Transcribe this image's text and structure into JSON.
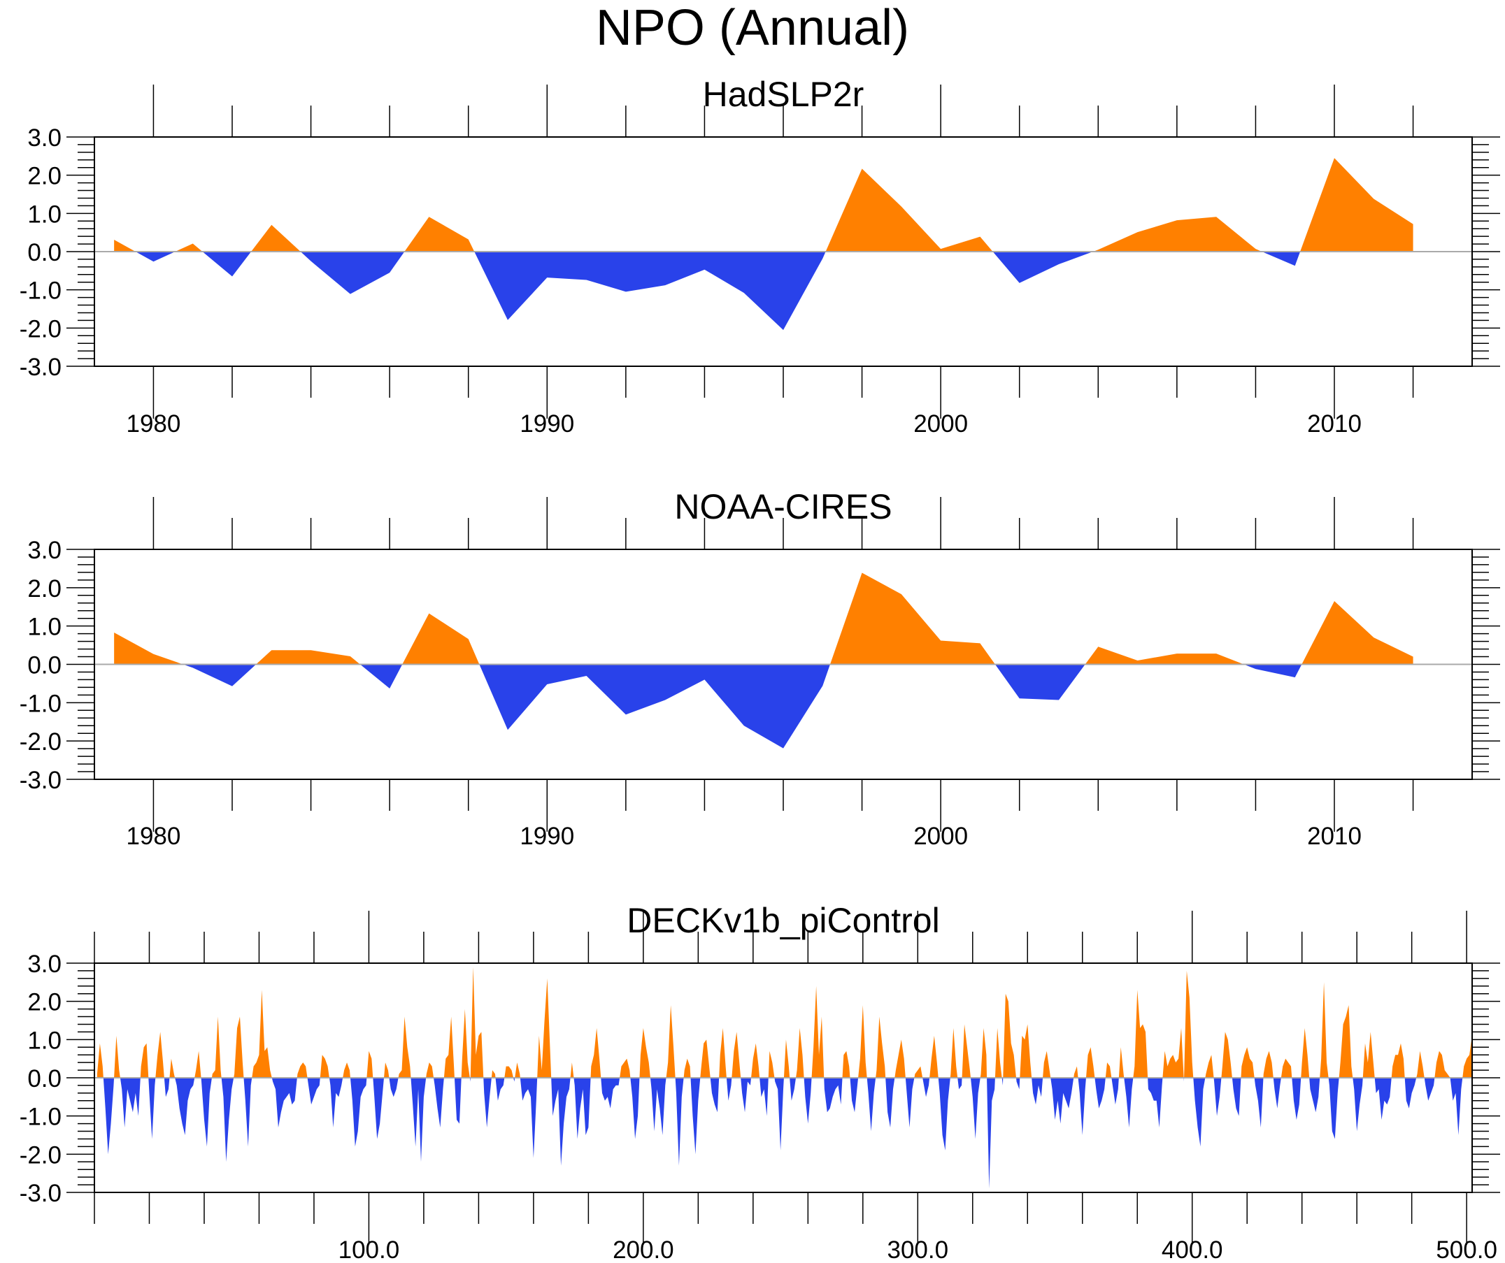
{
  "figure_title": "NPO (Annual)",
  "colors": {
    "positive": "#FF8000",
    "negative": "#2942EA",
    "zero_line": "#AAAAAA",
    "axis": "#000000"
  },
  "chart_data": [
    {
      "type": "area",
      "title": "HadSLP2r",
      "xlabel": "",
      "ylabel": "",
      "xlim": [
        1978.5,
        2013.5
      ],
      "ylim": [
        -3.0,
        3.0
      ],
      "x_ticks": [
        1980,
        1990,
        2000,
        2010
      ],
      "x_tick_labels": [
        "1980",
        "1990",
        "2000",
        "2010"
      ],
      "y_ticks": [
        3.0,
        2.0,
        1.0,
        0.0,
        -1.0,
        -2.0,
        -3.0
      ],
      "y_tick_labels": [
        "3.0",
        "2.0",
        "1.0",
        "0.0",
        "-1.0",
        "-2.0",
        "-3.0"
      ],
      "fill_above_zero": "orange",
      "fill_below_zero": "blue",
      "x": [
        1979,
        1980,
        1981,
        1982,
        1983,
        1984,
        1985,
        1986,
        1987,
        1988,
        1989,
        1990,
        1991,
        1992,
        1993,
        1994,
        1995,
        1996,
        1997,
        1998,
        1999,
        2000,
        2001,
        2002,
        2003,
        2004,
        2005,
        2006,
        2007,
        2008,
        2009,
        2010,
        2011,
        2012
      ],
      "values": [
        0.31,
        -0.26,
        0.21,
        -0.65,
        0.7,
        -0.25,
        -1.11,
        -0.55,
        0.91,
        0.32,
        -1.79,
        -0.68,
        -0.74,
        -1.05,
        -0.88,
        -0.47,
        -1.08,
        -2.05,
        -0.18,
        2.17,
        1.18,
        0.07,
        0.39,
        -0.82,
        -0.33,
        0.05,
        0.51,
        0.82,
        0.91,
        0.07,
        -0.37,
        2.45,
        1.38,
        0.72
      ]
    },
    {
      "type": "area",
      "title": "NOAA-CIRES",
      "xlabel": "",
      "ylabel": "",
      "xlim": [
        1978.5,
        2013.5
      ],
      "ylim": [
        -3.0,
        3.0
      ],
      "x_ticks": [
        1980,
        1990,
        2000,
        2010
      ],
      "x_tick_labels": [
        "1980",
        "1990",
        "2000",
        "2010"
      ],
      "y_ticks": [
        3.0,
        2.0,
        1.0,
        0.0,
        -1.0,
        -2.0,
        -3.0
      ],
      "y_tick_labels": [
        "3.0",
        "2.0",
        "1.0",
        "0.0",
        "-1.0",
        "-2.0",
        "-3.0"
      ],
      "fill_above_zero": "orange",
      "fill_below_zero": "blue",
      "x": [
        1979,
        1980,
        1981,
        1982,
        1983,
        1984,
        1985,
        1986,
        1987,
        1988,
        1989,
        1990,
        1991,
        1992,
        1993,
        1994,
        1995,
        1996,
        1997,
        1998,
        1999,
        2000,
        2001,
        2002,
        2003,
        2004,
        2005,
        2006,
        2007,
        2008,
        2009,
        2010,
        2011,
        2012
      ],
      "values": [
        0.83,
        0.27,
        -0.09,
        -0.57,
        0.37,
        0.37,
        0.21,
        -0.63,
        1.33,
        0.66,
        -1.71,
        -0.52,
        -0.3,
        -1.31,
        -0.93,
        -0.4,
        -1.6,
        -2.19,
        -0.56,
        2.39,
        1.83,
        0.62,
        0.55,
        -0.89,
        -0.93,
        0.46,
        0.1,
        0.28,
        0.28,
        -0.12,
        -0.34,
        1.65,
        0.7,
        0.2
      ]
    },
    {
      "type": "area",
      "title": "DECKv1b_piControl",
      "xlabel": "",
      "ylabel": "",
      "xlim": [
        0,
        502
      ],
      "ylim": [
        -3.0,
        3.0
      ],
      "x_ticks": [
        100,
        200,
        300,
        400,
        500
      ],
      "x_tick_labels": [
        "100.0",
        "200.0",
        "300.0",
        "400.0",
        "500.0"
      ],
      "y_ticks": [
        3.0,
        2.0,
        1.0,
        0.0,
        -1.0,
        -2.0,
        -3.0
      ],
      "y_tick_labels": [
        "3.0",
        "2.0",
        "1.0",
        "0.0",
        "-1.0",
        "-2.0",
        "-3.0"
      ],
      "fill_above_zero": "orange",
      "fill_below_zero": "blue",
      "x_start": 1,
      "values_note": "approximate, read from dense plot",
      "values": [
        0.1,
        0.9,
        0.3,
        -0.8,
        -2.0,
        -1.2,
        -0.2,
        1.1,
        0.2,
        -0.3,
        -1.3,
        -0.3,
        -0.6,
        -0.9,
        -0.4,
        -1.0,
        0.3,
        0.8,
        0.9,
        -0.4,
        -1.6,
        -0.2,
        0.6,
        1.2,
        0.4,
        -0.5,
        -0.3,
        0.5,
        0.1,
        -0.2,
        -0.8,
        -1.2,
        -1.5,
        -0.6,
        -0.3,
        -0.2,
        0.2,
        0.7,
        -0.1,
        -1.1,
        -1.8,
        -0.4,
        0.1,
        0.2,
        1.6,
        0.2,
        -0.5,
        -2.2,
        -1.1,
        -0.3,
        0.1,
        1.3,
        1.6,
        0.4,
        -0.6,
        -1.8,
        -0.2,
        0.3,
        0.4,
        0.6,
        2.3,
        0.7,
        0.8,
        0.2,
        -0.1,
        -0.3,
        -1.3,
        -0.9,
        -0.6,
        -0.5,
        -0.4,
        -0.7,
        -0.6,
        0.1,
        0.3,
        0.4,
        0.3,
        -0.2,
        -0.7,
        -0.5,
        -0.3,
        -0.2,
        0.6,
        0.5,
        0.3,
        -0.2,
        -1.3,
        -0.4,
        -0.5,
        -0.2,
        0.2,
        0.4,
        0.2,
        -0.6,
        -1.8,
        -1.4,
        -0.5,
        -0.3,
        -0.2,
        0.7,
        0.5,
        -0.5,
        -1.6,
        -1.2,
        -0.4,
        0.4,
        0.2,
        -0.3,
        -0.5,
        -0.3,
        0.1,
        0.2,
        1.6,
        0.8,
        0.3,
        -0.7,
        -1.8,
        -0.3,
        -2.2,
        -0.5,
        0.1,
        0.4,
        0.3,
        -0.2,
        -0.8,
        -1.3,
        -0.3,
        0.5,
        0.6,
        1.6,
        0.3,
        -1.1,
        -1.2,
        0.5,
        1.8,
        0.4,
        -0.1,
        2.9,
        0.6,
        1.1,
        1.2,
        -0.4,
        -1.3,
        -0.5,
        0.2,
        0.1,
        -0.6,
        -0.3,
        -0.2,
        0.3,
        0.3,
        0.2,
        -0.1,
        0.4,
        0.1,
        -0.6,
        -0.4,
        -0.3,
        -0.5,
        -2.1,
        -0.6,
        1.1,
        0.2,
        1.5,
        2.6,
        0.8,
        -1.0,
        -0.6,
        -0.3,
        -2.3,
        -1.2,
        -0.5,
        -0.3,
        0.4,
        -0.2,
        -1.6,
        -0.8,
        -0.3,
        -1.5,
        -1.3,
        0.3,
        0.6,
        1.3,
        0.5,
        -0.4,
        -0.6,
        -0.5,
        -0.8,
        -0.3,
        -0.2,
        -0.2,
        0.3,
        0.4,
        0.5,
        0.2,
        -0.5,
        -1.6,
        -1.0,
        0.6,
        1.3,
        0.8,
        0.4,
        -0.3,
        -1.4,
        -0.3,
        -0.8,
        -1.5,
        -0.2,
        0.4,
        1.9,
        0.8,
        -0.4,
        -2.3,
        -0.5,
        0.2,
        0.5,
        0.3,
        -1.0,
        -2.0,
        -0.6,
        0.2,
        0.9,
        1.0,
        0.3,
        -0.4,
        -0.7,
        -0.9,
        0.6,
        1.3,
        0.3,
        -0.6,
        -0.2,
        0.7,
        1.2,
        0.4,
        -0.4,
        -0.9,
        -0.1,
        -0.2,
        0.5,
        0.9,
        0.3,
        -0.5,
        -0.3,
        -1.0,
        0.7,
        0.4,
        -0.1,
        -0.3,
        -1.9,
        -0.3,
        1.0,
        0.3,
        -0.6,
        -0.3,
        0.2,
        1.3,
        0.6,
        -0.5,
        -1.2,
        -0.4,
        0.8,
        2.4,
        0.6,
        1.6,
        -0.3,
        -0.9,
        -0.8,
        -0.5,
        -0.3,
        -0.2,
        -0.7,
        0.6,
        0.7,
        0.3,
        -0.6,
        -0.9,
        -0.2,
        0.5,
        1.9,
        0.4,
        -0.4,
        -1.4,
        -0.4,
        0.2,
        1.6,
        0.9,
        0.3,
        -0.9,
        -1.3,
        -0.3,
        0.2,
        0.6,
        1.0,
        0.5,
        -0.4,
        -1.3,
        -0.3,
        0.1,
        0.2,
        0.3,
        -0.1,
        -0.5,
        -0.2,
        0.5,
        1.1,
        0.4,
        -0.4,
        -1.5,
        -1.9,
        -0.6,
        0.1,
        1.3,
        0.3,
        -0.3,
        -0.2,
        1.4,
        0.8,
        0.2,
        -0.5,
        -1.6,
        -0.4,
        0.1,
        1.3,
        0.6,
        -2.9,
        -0.6,
        -0.3,
        1.3,
        0.4,
        -0.2,
        2.2,
        2.0,
        0.9,
        0.6,
        -0.1,
        -0.3,
        1.1,
        1.0,
        1.4,
        0.4,
        -0.4,
        -0.7,
        -0.2,
        -0.5,
        0.4,
        0.7,
        0.2,
        -0.3,
        -1.1,
        -0.6,
        -1.2,
        -0.4,
        -0.6,
        -0.8,
        -0.4,
        0.1,
        0.3,
        -0.4,
        -1.5,
        -0.3,
        0.6,
        0.8,
        0.3,
        -0.3,
        -0.8,
        -0.6,
        -0.3,
        0.4,
        0.3,
        -0.2,
        -0.7,
        -0.3,
        0.8,
        0.1,
        -0.5,
        -1.3,
        -0.3,
        0.3,
        2.3,
        1.3,
        1.4,
        1.2,
        -0.3,
        -0.4,
        -0.6,
        -0.6,
        -1.3,
        -0.2,
        0.7,
        0.3,
        0.5,
        0.6,
        0.4,
        0.5,
        1.3,
        -0.1,
        2.8,
        2.1,
        0.4,
        -0.6,
        -1.3,
        -1.8,
        -0.3,
        0.1,
        0.4,
        0.6,
        -0.1,
        -1.0,
        -0.5,
        0.3,
        1.2,
        1.0,
        0.4,
        -0.3,
        -0.8,
        -1.0,
        0.3,
        0.6,
        0.8,
        0.5,
        0.4,
        -0.2,
        -0.6,
        -1.3,
        0.1,
        0.5,
        0.7,
        0.4,
        -0.3,
        -0.8,
        -0.2,
        0.3,
        0.5,
        0.4,
        0.3,
        -0.6,
        -1.1,
        -0.7,
        0.4,
        1.3,
        0.6,
        -0.3,
        -0.6,
        -0.9,
        -0.5,
        0.5,
        2.5,
        0.4,
        -0.2,
        -1.4,
        -1.6,
        -0.4,
        0.4,
        1.4,
        1.6,
        1.9,
        0.3,
        -0.3,
        -1.4,
        -0.7,
        -0.2,
        0.9,
        0.4,
        1.2,
        0.4,
        -0.4,
        -0.3,
        -1.1,
        -0.6,
        -0.7,
        -0.5,
        0.3,
        0.6,
        0.6,
        0.9,
        0.5,
        -0.6,
        -0.8,
        -0.4,
        -0.2,
        0.1,
        0.7,
        0.3,
        -0.2,
        -0.6,
        -0.4,
        -0.2,
        0.4,
        0.7,
        0.6,
        0.2,
        0.1,
        0.0,
        -0.6,
        -0.4,
        -1.5,
        -0.3,
        0.3,
        0.5,
        0.6,
        1.1,
        0.7,
        -1.2,
        0.9,
        0.3,
        -0.3
      ]
    }
  ]
}
